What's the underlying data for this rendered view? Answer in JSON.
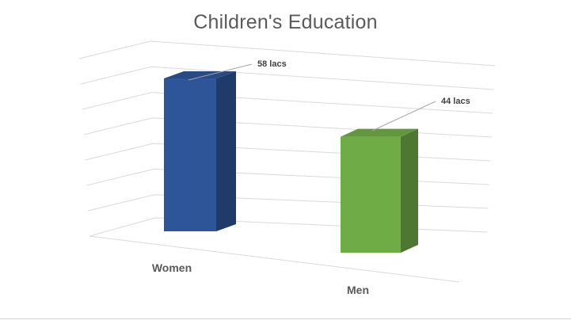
{
  "chart_data": {
    "type": "bar",
    "title": "Children's Education",
    "categories": [
      "Women",
      "Men"
    ],
    "values": [
      58,
      44
    ],
    "data_labels": [
      "58 lacs",
      "44 lacs"
    ],
    "colors": [
      "#2e5597",
      "#6fac46"
    ],
    "ylim": [
      0,
      70
    ],
    "grid": true,
    "legend": "none",
    "style": "3d-perspective"
  }
}
